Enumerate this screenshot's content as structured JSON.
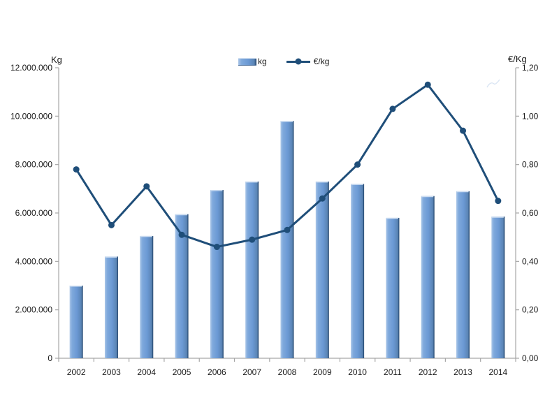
{
  "chart_data": {
    "type": "combo-bar-line",
    "title": "",
    "categories": [
      "2002",
      "2003",
      "2004",
      "2005",
      "2006",
      "2007",
      "2008",
      "2009",
      "2010",
      "2011",
      "2012",
      "2013",
      "2014"
    ],
    "series": [
      {
        "name": "kg",
        "type": "bar",
        "axis": "left",
        "values": [
          3000000,
          4200000,
          5050000,
          5950000,
          6950000,
          7300000,
          9800000,
          7300000,
          7200000,
          5800000,
          6700000,
          6900000,
          5850000
        ]
      },
      {
        "name": "€/kg",
        "type": "line",
        "axis": "right",
        "values": [
          0.78,
          0.55,
          0.71,
          0.51,
          0.46,
          0.49,
          0.53,
          0.66,
          0.8,
          1.03,
          1.13,
          0.94,
          0.65
        ]
      }
    ],
    "left_axis": {
      "title": "Kg",
      "min": 0,
      "max": 12000000,
      "step": 2000000,
      "tick_labels": [
        "0",
        "2.000.000",
        "4.000.000",
        "6.000.000",
        "8.000.000",
        "10.000.000",
        "12.000.000"
      ]
    },
    "right_axis": {
      "title": "€/Kg",
      "min": 0,
      "max": 1.2,
      "step": 0.2,
      "tick_labels": [
        "0,00",
        "0,20",
        "0,40",
        "0,60",
        "0,80",
        "1,00",
        "1,20"
      ]
    },
    "legend": {
      "position": "top",
      "entries": [
        {
          "label": "kg",
          "marker": "bar"
        },
        {
          "label": "€/kg",
          "marker": "line"
        }
      ]
    },
    "grid": false,
    "colors": {
      "bar_main": "#6b99d4",
      "bar_light": "#aac6e8",
      "bar_edge_dark": "#1d3f66",
      "bar_top_highlight": "#cdddf1",
      "line": "#1f4e79",
      "axis": "#a6a6a6",
      "text": "#1a1a1a",
      "watermark": "#c3d6ec"
    }
  }
}
